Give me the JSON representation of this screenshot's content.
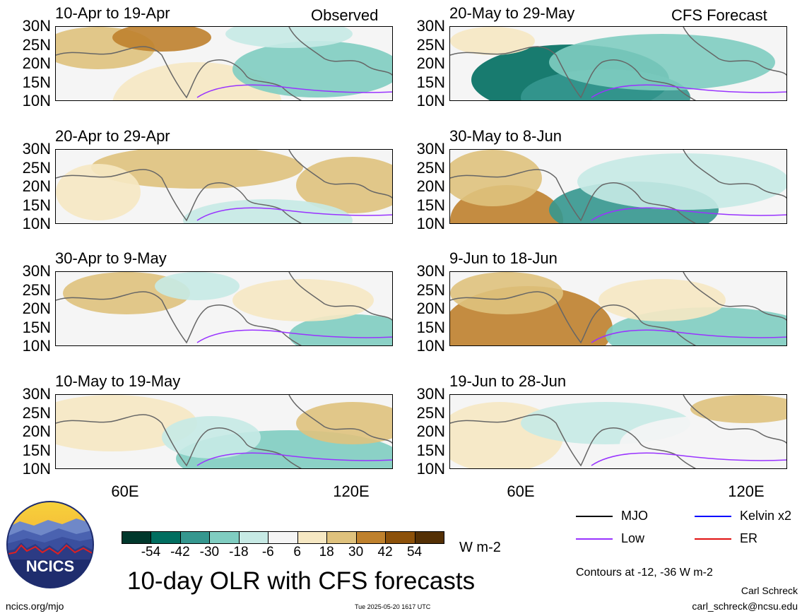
{
  "columns": {
    "left_header": "Observed",
    "right_header": "CFS Forecast"
  },
  "panels_left": [
    {
      "title": "10-Apr to 19-Apr"
    },
    {
      "title": "20-Apr to 29-Apr"
    },
    {
      "title": "30-Apr to 9-May"
    },
    {
      "title": "10-May to 19-May"
    }
  ],
  "panels_right": [
    {
      "title": "20-May to 29-May"
    },
    {
      "title": "30-May to 8-Jun"
    },
    {
      "title": "9-Jun to 18-Jun"
    },
    {
      "title": "19-Jun to 28-Jun"
    }
  ],
  "axes": {
    "y_ticks": [
      "30N",
      "25N",
      "20N",
      "15N",
      "10N"
    ],
    "x_ticks": [
      "60E",
      "120E"
    ]
  },
  "colorbar": {
    "colors": [
      "#00382c",
      "#006e60",
      "#35978f",
      "#80cdc1",
      "#c7eae5",
      "#f5f5f5",
      "#f6e8c3",
      "#dfc27d",
      "#bf812d",
      "#8c510a",
      "#543005"
    ],
    "ticks": [
      "-54",
      "-42",
      "-30",
      "-18",
      "-6",
      "6",
      "18",
      "30",
      "42",
      "54"
    ],
    "units": "W m-2"
  },
  "legend": {
    "items": [
      {
        "label": "MJO",
        "color": "#000000"
      },
      {
        "label": "Kelvin x2",
        "color": "#0000ff"
      },
      {
        "label": "Low",
        "color": "#9933ff"
      },
      {
        "label": "ER",
        "color": "#e01010"
      }
    ],
    "note": "Contours at -12, -36 W m-2"
  },
  "footer": {
    "title": "10-day OLR with CFS forecasts",
    "url": "ncics.org/mjo",
    "timestamp": "Tue 2025-05-20 1617 UTC",
    "author": "Carl Schreck",
    "email": "carl_schreck@ncsu.edu",
    "logo_text": "NCICS"
  }
}
